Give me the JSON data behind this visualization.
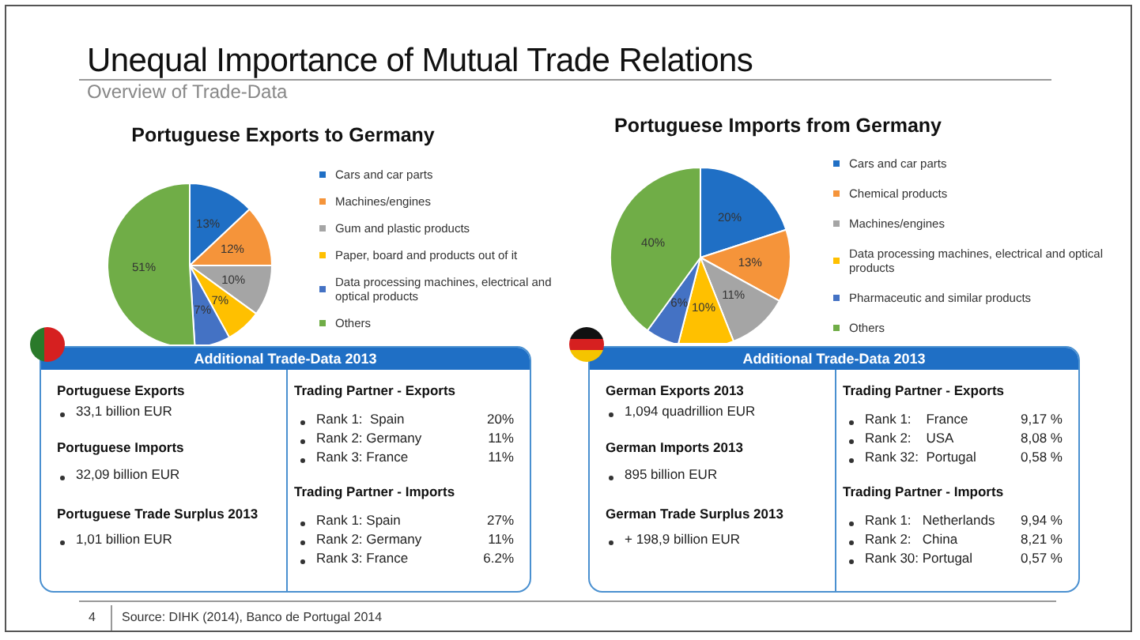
{
  "chart_data": [
    {
      "type": "other",
      "title": "Unequal Importance of Mutual Trade Relations",
      "subtitle": "Overview of Trade-Data",
      "annotations": [
        "4",
        "Source: DIHK (2014), Banco de Portugal 2014"
      ]
    },
    {
      "type": "pie",
      "title": "Portuguese Exports to Germany",
      "categories": [
        "Cars and car parts",
        "Machines/engines",
        "Gum and plastic products",
        "Paper, board and products out of it",
        "Data processing machines, electrical and optical products",
        "Others"
      ],
      "values": [
        13,
        12,
        10,
        7,
        7,
        51
      ],
      "value_labels": [
        "13%",
        "12%",
        "10%",
        "7%",
        "7%",
        "51%"
      ],
      "colors": [
        "#1f6fc5",
        "#f5943a",
        "#a5a5a5",
        "#ffc000",
        "#4472c4",
        "#70ad47"
      ],
      "legend": "right"
    },
    {
      "type": "pie",
      "title": "Portuguese Imports from Germany",
      "categories": [
        "Cars and car parts",
        "Chemical products",
        "Machines/engines",
        "Data processing machines, electrical and optical products",
        "Pharmaceutic and similar products",
        "Others"
      ],
      "values": [
        20,
        13,
        11,
        10,
        6,
        40
      ],
      "value_labels": [
        "20%",
        "13%",
        "11%",
        "10%",
        "6%",
        "40%"
      ],
      "colors": [
        "#1f6fc5",
        "#f5943a",
        "#a5a5a5",
        "#ffc000",
        "#4472c4",
        "#70ad47"
      ],
      "legend": "right"
    },
    {
      "type": "other",
      "title": "Additional Trade-Data 2013",
      "annotations": [
        "Portuguese Exports",
        "33,1 billion EUR",
        "Portuguese Imports",
        "32,09 billion EUR",
        "Portuguese Trade Surplus 2013",
        "1,01 billion EUR",
        "Trading Partner - Exports",
        "Rank 1:  Spain",
        "20%",
        "Rank 2: Germany",
        "11%",
        "Rank 3: France",
        "11%",
        "Trading Partner - Imports",
        "Rank 1: Spain",
        "27%",
        "Rank 2: Germany",
        "11%",
        "Rank 3: France",
        "6.2%"
      ]
    },
    {
      "type": "other",
      "title": "Additional Trade-Data 2013",
      "annotations": [
        "German Exports 2013",
        "1,094 quadrillion EUR",
        "German Imports 2013",
        "895 billion EUR",
        "German Trade Surplus 2013",
        "+ 198,9 billion EUR",
        "Trading Partner - Exports",
        "Rank 1:    France",
        "9,17 %",
        "Rank 2:    USA",
        "8,08 %",
        "Rank 32:  Portugal",
        "0,58 %",
        "Trading Partner - Imports",
        "Rank 1:   Netherlands",
        "9,94 %",
        "Rank 2:   China",
        "8,21 %",
        "Rank 30: Portugal",
        "0,57 %"
      ]
    }
  ]
}
